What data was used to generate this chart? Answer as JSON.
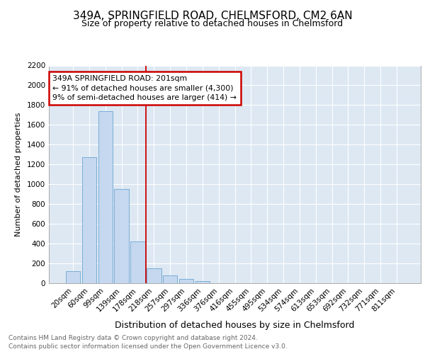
{
  "title": "349A, SPRINGFIELD ROAD, CHELMSFORD, CM2 6AN",
  "subtitle": "Size of property relative to detached houses in Chelmsford",
  "xlabel": "Distribution of detached houses by size in Chelmsford",
  "ylabel": "Number of detached properties",
  "categories": [
    "20sqm",
    "60sqm",
    "99sqm",
    "139sqm",
    "178sqm",
    "218sqm",
    "257sqm",
    "297sqm",
    "336sqm",
    "376sqm",
    "416sqm",
    "455sqm",
    "495sqm",
    "534sqm",
    "574sqm",
    "613sqm",
    "653sqm",
    "692sqm",
    "732sqm",
    "771sqm",
    "811sqm"
  ],
  "values": [
    120,
    1270,
    1740,
    950,
    420,
    150,
    80,
    40,
    20,
    0,
    0,
    0,
    0,
    0,
    0,
    0,
    0,
    0,
    0,
    0,
    0
  ],
  "bar_color": "#c5d8f0",
  "bar_edge_color": "#7aadd4",
  "vline_x": 5,
  "vline_color": "#cc0000",
  "annotation_line1": "349A SPRINGFIELD ROAD: 201sqm",
  "annotation_line2": "← 91% of detached houses are smaller (4,300)",
  "annotation_line3": "9% of semi-detached houses are larger (414) →",
  "annotation_box_color": "#cc0000",
  "ylim": [
    0,
    2200
  ],
  "yticks": [
    0,
    200,
    400,
    600,
    800,
    1000,
    1200,
    1400,
    1600,
    1800,
    2000,
    2200
  ],
  "plot_bg_color": "#dde8f3",
  "fig_bg_color": "#ffffff",
  "footer1": "Contains HM Land Registry data © Crown copyright and database right 2024.",
  "footer2": "Contains public sector information licensed under the Open Government Licence v3.0.",
  "title_fontsize": 11,
  "subtitle_fontsize": 9,
  "xlabel_fontsize": 9,
  "ylabel_fontsize": 8,
  "tick_fontsize": 7.5,
  "footer_fontsize": 6.5
}
